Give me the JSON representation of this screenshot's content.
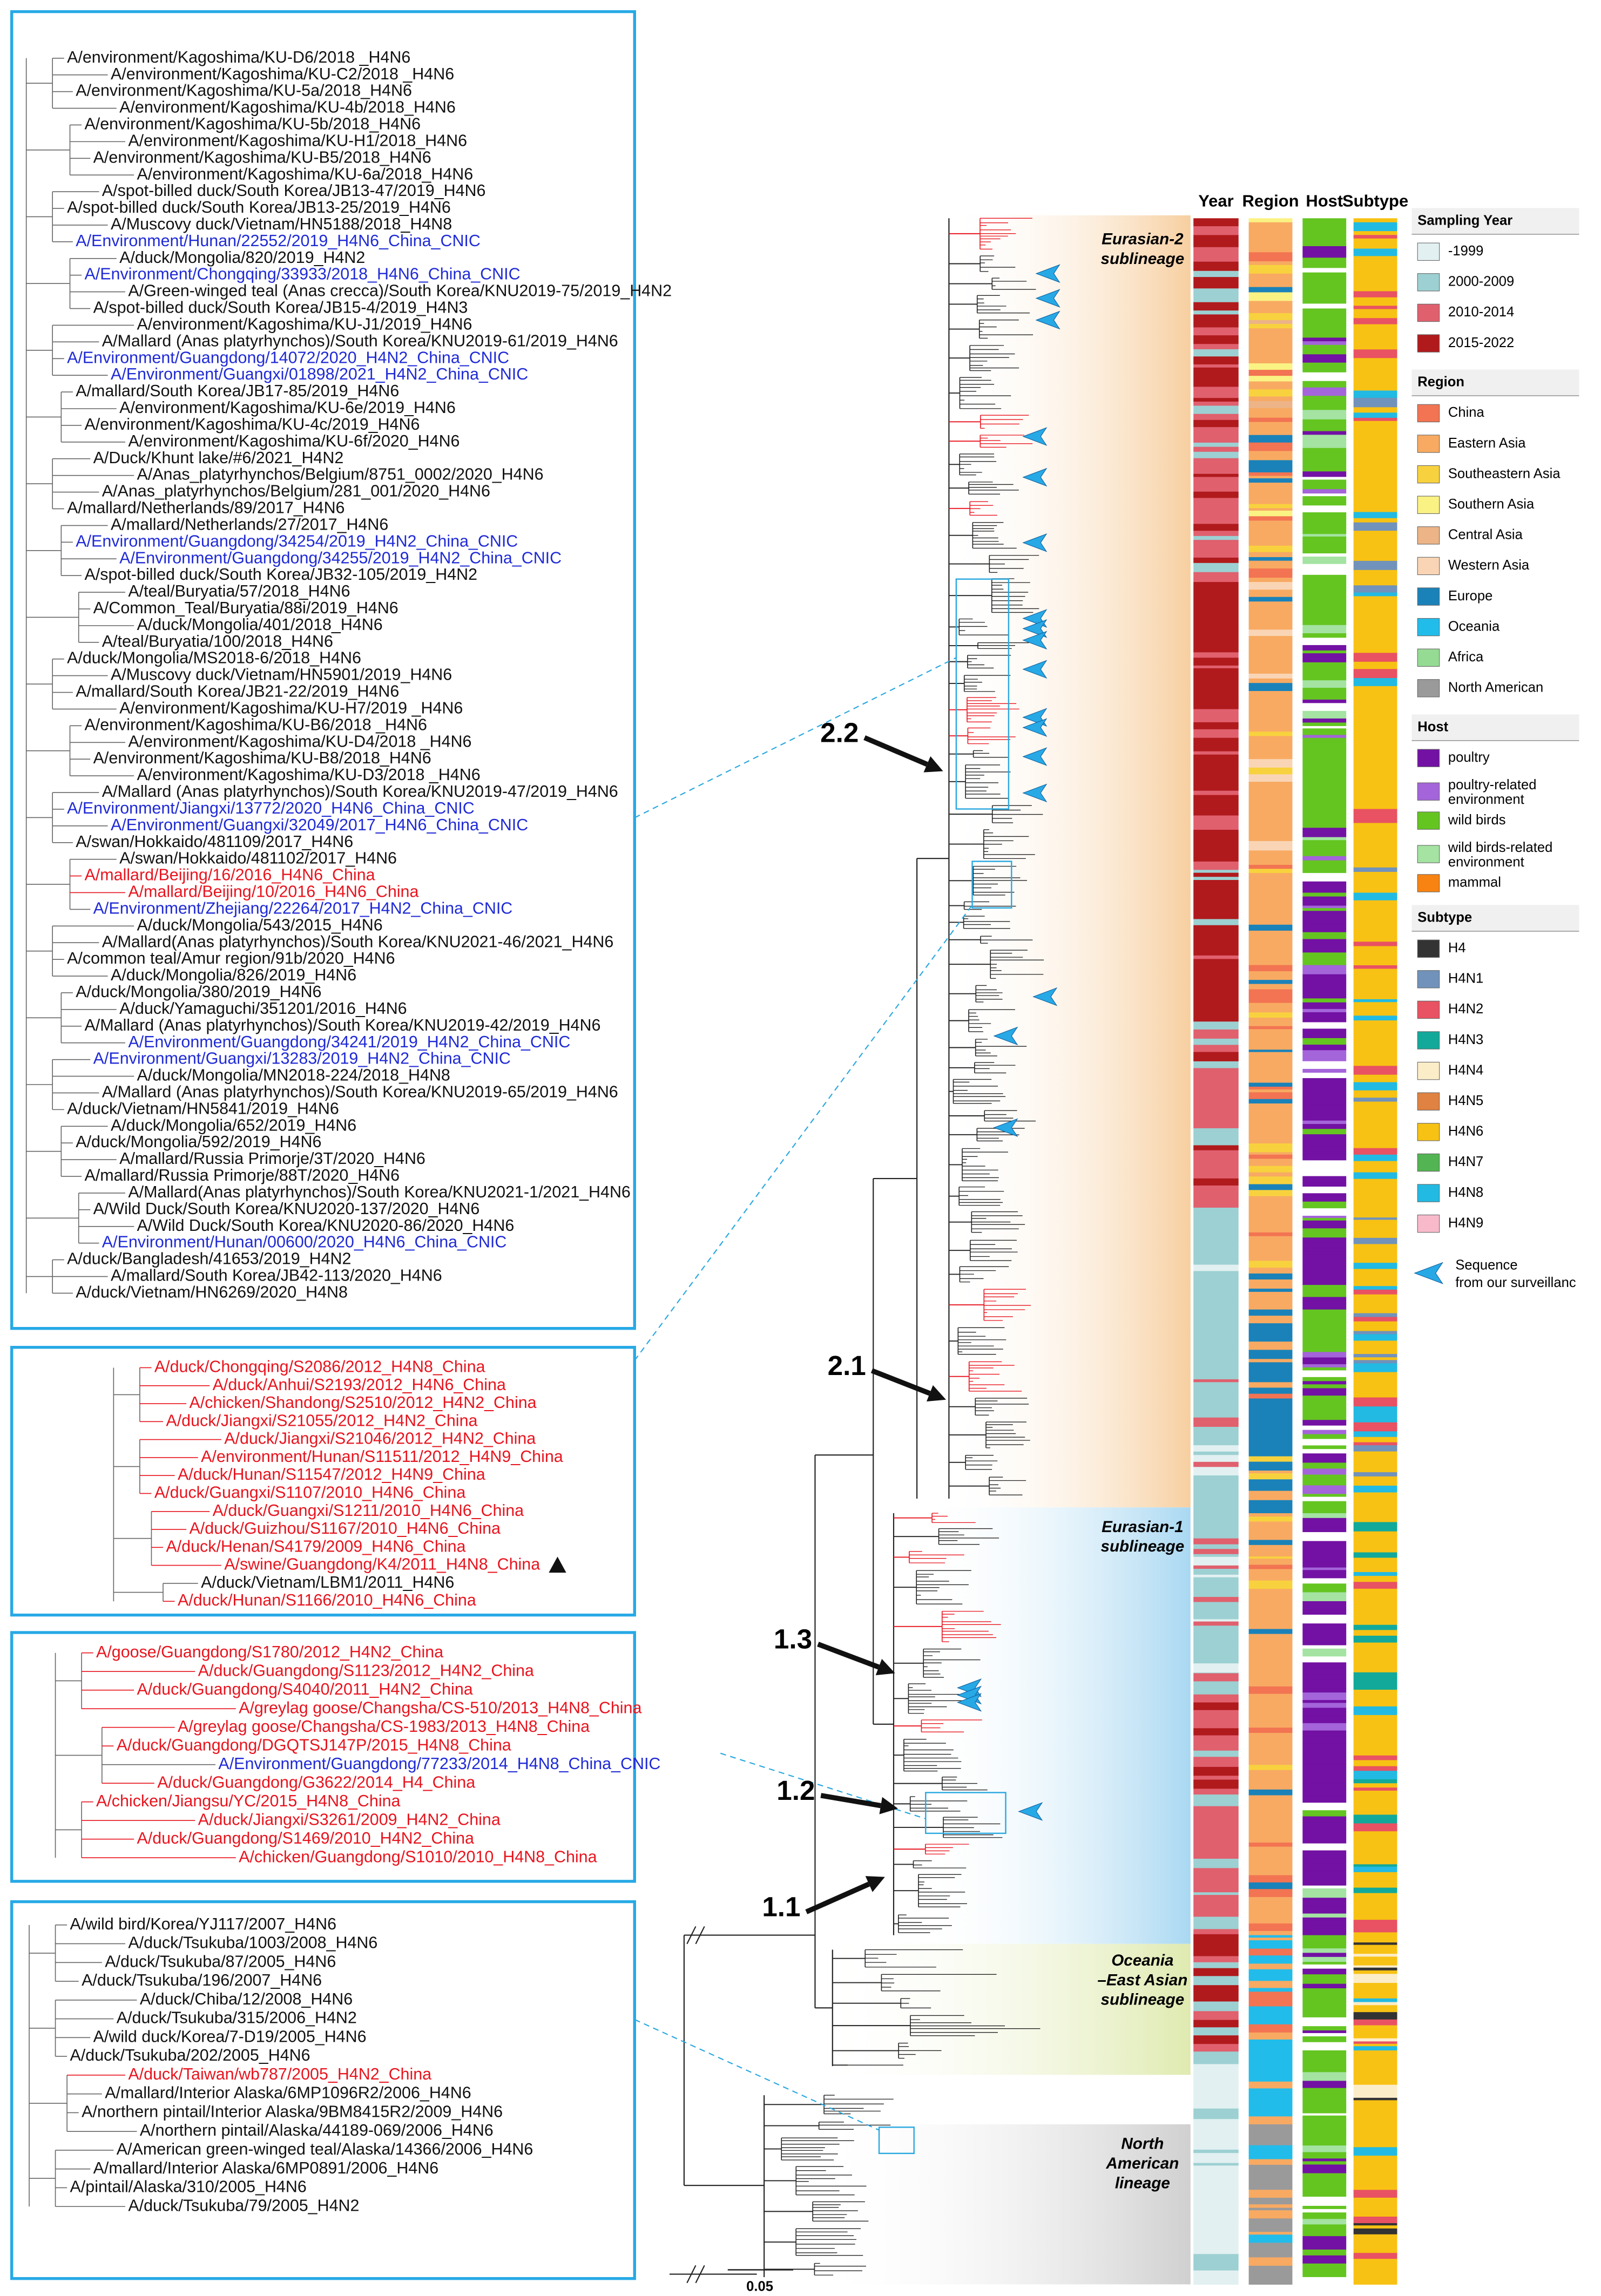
{
  "boxes": [
    {
      "taxa": [
        {
          "name": "A/environment/Kagoshima/KU-D6/2018 _H4N6",
          "color": "#111111"
        },
        {
          "name": "A/environment/Kagoshima/KU-C2/2018 _H4N6",
          "color": "#111111"
        },
        {
          "name": "A/environment/Kagoshima/KU-5a/2018_H4N6",
          "color": "#111111"
        },
        {
          "name": "A/environment/Kagoshima/KU-4b/2018_H4N6",
          "color": "#111111"
        },
        {
          "name": "A/environment/Kagoshima/KU-5b/2018_H4N6",
          "color": "#111111"
        },
        {
          "name": "A/environment/Kagoshima/KU-H1/2018_H4N6",
          "color": "#111111"
        },
        {
          "name": "A/environment/Kagoshima/KU-B5/2018_H4N6",
          "color": "#111111"
        },
        {
          "name": "A/environment/Kagoshima/KU-6a/2018_H4N6",
          "color": "#111111"
        },
        {
          "name": "A/spot-billed duck/South Korea/JB13-47/2019_H4N6",
          "color": "#111111"
        },
        {
          "name": "A/spot-billed duck/South Korea/JB13-25/2019_H4N6",
          "color": "#111111"
        },
        {
          "name": "A/Muscovy duck/Vietnam/HN5188/2018_H4N8",
          "color": "#111111"
        },
        {
          "name": "A/Environment/Hunan/22552/2019_H4N6_China_CNIC",
          "color": "#1f2ad6"
        },
        {
          "name": "A/duck/Mongolia/820/2019_H4N2",
          "color": "#111111"
        },
        {
          "name": "A/Environment/Chongqing/33933/2018_H4N6_China_CNIC",
          "color": "#1f2ad6"
        },
        {
          "name": "A/Green-winged teal (Anas crecca)/South Korea/KNU2019-75/2019_H4N2",
          "color": "#111111"
        },
        {
          "name": "A/spot-billed duck/South Korea/JB15-4/2019_H4N3",
          "color": "#111111"
        },
        {
          "name": "A/environment/Kagoshima/KU-J1/2019_H4N6",
          "color": "#111111"
        },
        {
          "name": "A/Mallard (Anas platyrhynchos)/South Korea/KNU2019-61/2019_H4N6",
          "color": "#111111"
        },
        {
          "name": "A/Environment/Guangdong/14072/2020_H4N2_China_CNIC",
          "color": "#1f2ad6"
        },
        {
          "name": "A/Environment/Guangxi/01898/2021_H4N2_China_CNIC",
          "color": "#1f2ad6"
        },
        {
          "name": "A/mallard/South Korea/JB17-85/2019_H4N6",
          "color": "#111111"
        },
        {
          "name": "A/environment/Kagoshima/KU-6e/2019_H4N6",
          "color": "#111111"
        },
        {
          "name": "A/environment/Kagoshima/KU-4c/2019_H4N6",
          "color": "#111111"
        },
        {
          "name": "A/environment/Kagoshima/KU-6f/2020_H4N6",
          "color": "#111111"
        },
        {
          "name": "A/Duck/Khunt lake/#6/2021_H4N2",
          "color": "#111111"
        },
        {
          "name": "A/Anas_platyrhynchos/Belgium/8751_0002/2020_H4N6",
          "color": "#111111"
        },
        {
          "name": "A/Anas_platyrhynchos/Belgium/281_001/2020_H4N6",
          "color": "#111111"
        },
        {
          "name": "A/mallard/Netherlands/89/2017_H4N6",
          "color": "#111111"
        },
        {
          "name": "A/mallard/Netherlands/27/2017_H4N6",
          "color": "#111111"
        },
        {
          "name": "A/Environment/Guangdong/34254/2019_H4N2_China_CNIC",
          "color": "#1f2ad6"
        },
        {
          "name": "A/Environment/Guangdong/34255/2019_H4N2_China_CNIC",
          "color": "#1f2ad6"
        },
        {
          "name": "A/spot-billed duck/South Korea/JB32-105/2019_H4N2",
          "color": "#111111"
        },
        {
          "name": "A/teal/Buryatia/57/2018_H4N6",
          "color": "#111111"
        },
        {
          "name": "A/Common_Teal/Buryatia/88i/2019_H4N6",
          "color": "#111111"
        },
        {
          "name": "A/duck/Mongolia/401/2018_H4N6",
          "color": "#111111"
        },
        {
          "name": "A/teal/Buryatia/100/2018_H4N6",
          "color": "#111111"
        },
        {
          "name": "A/duck/Mongolia/MS2018-6/2018_H4N6",
          "color": "#111111"
        },
        {
          "name": "A/Muscovy duck/Vietnam/HN5901/2019_H4N6",
          "color": "#111111"
        },
        {
          "name": "A/mallard/South Korea/JB21-22/2019_H4N6",
          "color": "#111111"
        },
        {
          "name": "A/environment/Kagoshima/KU-H7/2019 _H4N6",
          "color": "#111111"
        },
        {
          "name": "A/environment/Kagoshima/KU-B6/2018 _H4N6",
          "color": "#111111"
        },
        {
          "name": "A/environment/Kagoshima/KU-D4/2018 _H4N6",
          "color": "#111111"
        },
        {
          "name": "A/environment/Kagoshima/KU-B8/2018_H4N6",
          "color": "#111111"
        },
        {
          "name": "A/environment/Kagoshima/KU-D3/2018 _H4N6",
          "color": "#111111"
        },
        {
          "name": "A/Mallard (Anas platyrhynchos)/South Korea/KNU2019-47/2019_H4N6",
          "color": "#111111"
        },
        {
          "name": "A/Environment/Jiangxi/13772/2020_H4N6_China_CNIC",
          "color": "#1f2ad6"
        },
        {
          "name": "A/Environment/Guangxi/32049/2017_H4N6_China_CNIC",
          "color": "#1f2ad6"
        },
        {
          "name": "A/swan/Hokkaido/481109/2017_H4N6",
          "color": "#111111"
        },
        {
          "name": "A/swan/Hokkaido/481102/2017_H4N6",
          "color": "#111111"
        },
        {
          "name": "A/mallard/Beijing/16/2016_H4N6_China",
          "color": "#e8141e"
        },
        {
          "name": "A/mallard/Beijing/10/2016_H4N6_China",
          "color": "#e8141e"
        },
        {
          "name": "A/Environment/Zhejiang/22264/2017_H4N2_China_CNIC",
          "color": "#1f2ad6"
        },
        {
          "name": "A/duck/Mongolia/543/2015_H4N6",
          "color": "#111111"
        },
        {
          "name": "A/Mallard(Anas platyrhynchos)/South Korea/KNU2021-46/2021_H4N6",
          "color": "#111111"
        },
        {
          "name": "A/common teal/Amur region/91b/2020_H4N6",
          "color": "#111111"
        },
        {
          "name": "A/duck/Mongolia/826/2019_H4N6",
          "color": "#111111"
        },
        {
          "name": "A/duck/Mongolia/380/2019_H4N6",
          "color": "#111111"
        },
        {
          "name": "A/duck/Yamaguchi/351201/2016_H4N6",
          "color": "#111111"
        },
        {
          "name": "A/Mallard (Anas platyrhynchos)/South Korea/KNU2019-42/2019_H4N6",
          "color": "#111111"
        },
        {
          "name": "A/Environment/Guangdong/34241/2019_H4N2_China_CNIC",
          "color": "#1f2ad6"
        },
        {
          "name": "A/Environment/Guangxi/13283/2019_H4N2_China_CNIC",
          "color": "#1f2ad6"
        },
        {
          "name": "A/duck/Mongolia/MN2018-224/2018_H4N8",
          "color": "#111111"
        },
        {
          "name": "A/Mallard (Anas platyrhynchos)/South Korea/KNU2019-65/2019_H4N6",
          "color": "#111111"
        },
        {
          "name": "A/duck/Vietnam/HN5841/2019_H4N6",
          "color": "#111111"
        },
        {
          "name": "A/duck/Mongolia/652/2019_H4N6",
          "color": "#111111"
        },
        {
          "name": "A/duck/Mongolia/592/2019_H4N6",
          "color": "#111111"
        },
        {
          "name": "A/mallard/Russia Primorje/3T/2020_H4N6",
          "color": "#111111"
        },
        {
          "name": "A/mallard/Russia Primorje/88T/2020_H4N6",
          "color": "#111111"
        },
        {
          "name": "A/Mallard(Anas platyrhynchos)/South Korea/KNU2021-1/2021_H4N6",
          "color": "#111111"
        },
        {
          "name": "A/Wild Duck/South Korea/KNU2020-137/2020_H4N6",
          "color": "#111111"
        },
        {
          "name": "A/Wild Duck/South Korea/KNU2020-86/2020_H4N6",
          "color": "#111111"
        },
        {
          "name": "A/Environment/Hunan/00600/2020_H4N6_China_CNIC",
          "color": "#1f2ad6"
        },
        {
          "name": "A/duck/Bangladesh/41653/2019_H4N2",
          "color": "#111111"
        },
        {
          "name": "A/mallard/South Korea/JB42-113/2020_H4N6",
          "color": "#111111"
        },
        {
          "name": "A/duck/Vietnam/HN6269/2020_H4N8",
          "color": "#111111"
        }
      ]
    },
    {
      "taxa": [
        {
          "name": "A/duck/Chongqing/S2086/2012_H4N8_China",
          "color": "#e8141e"
        },
        {
          "name": "A/duck/Anhui/S2193/2012_H4N6_China",
          "color": "#e8141e"
        },
        {
          "name": "A/chicken/Shandong/S2510/2012_H4N2_China",
          "color": "#e8141e"
        },
        {
          "name": "A/duck/Jiangxi/S21055/2012_H4N2_China",
          "color": "#e8141e"
        },
        {
          "name": "A/duck/Jiangxi/S21046/2012_H4N2_China",
          "color": "#e8141e"
        },
        {
          "name": "A/environment/Hunan/S11511/2012_H4N9_China",
          "color": "#e8141e"
        },
        {
          "name": "A/duck/Hunan/S11547/2012_H4N9_China",
          "color": "#e8141e"
        },
        {
          "name": "A/duck/Guangxi/S1107/2010_H4N6_China",
          "color": "#e8141e"
        },
        {
          "name": "A/duck/Guangxi/S1211/2010_H4N6_China",
          "color": "#e8141e"
        },
        {
          "name": "A/duck/Guizhou/S1167/2010_H4N6_China",
          "color": "#e8141e"
        },
        {
          "name": "A/duck/Henan/S4179/2009_H4N6_China",
          "color": "#e8141e"
        },
        {
          "name": "A/swine/Guangdong/K4/2011_H4N8_China",
          "color": "#e8141e"
        },
        {
          "name": "A/duck/Vietnam/LBM1/2011_H4N6",
          "color": "#111111"
        },
        {
          "name": "A/duck/Hunan/S1166/2010_H4N6_China",
          "color": "#e8141e"
        }
      ]
    },
    {
      "taxa": [
        {
          "name": "A/goose/Guangdong/S1780/2012_H4N2_China",
          "color": "#e8141e"
        },
        {
          "name": "A/duck/Guangdong/S1123/2012_H4N2_China",
          "color": "#e8141e"
        },
        {
          "name": "A/duck/Guangdong/S4040/2011_H4N2_China",
          "color": "#e8141e"
        },
        {
          "name": "A/greylag goose/Changsha/CS-510/2013_H4N8_China",
          "color": "#e8141e"
        },
        {
          "name": "A/greylag goose/Changsha/CS-1983/2013_H4N8_China",
          "color": "#e8141e"
        },
        {
          "name": "A/duck/Guangdong/DGQTSJ147P/2015_H4N8_China",
          "color": "#e8141e"
        },
        {
          "name": "A/Environment/Guangdong/77233/2014_H4N8_China_CNIC",
          "color": "#1f2ad6"
        },
        {
          "name": "A/duck/Guangdong/G3622/2014_H4_China",
          "color": "#e8141e"
        },
        {
          "name": "A/chicken/Jiangsu/YC/2015_H4N8_China",
          "color": "#e8141e"
        },
        {
          "name": "A/duck/Jiangxi/S3261/2009_H4N2_China",
          "color": "#e8141e"
        },
        {
          "name": "A/duck/Guangdong/S1469/2010_H4N2_China",
          "color": "#e8141e"
        },
        {
          "name": "A/chicken/Guangdong/S1010/2010_H4N8_China",
          "color": "#e8141e"
        }
      ]
    },
    {
      "taxa": [
        {
          "name": "A/wild bird/Korea/YJ117/2007_H4N6",
          "color": "#111111"
        },
        {
          "name": "A/duck/Tsukuba/1003/2008_H4N6",
          "color": "#111111"
        },
        {
          "name": "A/duck/Tsukuba/87/2005_H4N6",
          "color": "#111111"
        },
        {
          "name": "A/duck/Tsukuba/196/2007_H4N6",
          "color": "#111111"
        },
        {
          "name": "A/duck/Chiba/12/2008_H4N6",
          "color": "#111111"
        },
        {
          "name": "A/duck/Tsukuba/315/2006_H4N2",
          "color": "#111111"
        },
        {
          "name": "A/wild duck/Korea/7-D19/2005_H4N6",
          "color": "#111111"
        },
        {
          "name": "A/duck/Tsukuba/202/2005_H4N6",
          "color": "#111111"
        },
        {
          "name": "A/duck/Taiwan/wb787/2005_H4N2_China",
          "color": "#e8141e"
        },
        {
          "name": "A/mallard/Interior Alaska/6MP1096R2/2006_H4N6",
          "color": "#111111"
        },
        {
          "name": "A/northern pintail/Interior Alaska/9BM8415R2/2009_H4N6",
          "color": "#111111"
        },
        {
          "name": "A/northern pintail/Alaska/44189-069/2006_H4N6",
          "color": "#111111"
        },
        {
          "name": "A/American green-winged teal/Alaska/14366/2006_H4N6",
          "color": "#111111"
        },
        {
          "name": "A/mallard/Interior Alaska/6MP0891/2006_H4N6",
          "color": "#111111"
        },
        {
          "name": "A/pintail/Alaska/310/2005_H4N6",
          "color": "#111111"
        },
        {
          "name": "A/duck/Tsukuba/79/2005_H4N2",
          "color": "#111111"
        }
      ]
    }
  ],
  "clades": [
    "2.2",
    "2.1",
    "1.3",
    "1.2",
    "1.1"
  ],
  "lineages": [
    {
      "label": [
        "Eurasian-2",
        "sublineage"
      ],
      "color": "#f7cfa0"
    },
    {
      "label": [
        "Eurasian-1",
        "sublineage"
      ],
      "color": "#a9d8f2"
    },
    {
      "label": [
        "Oceania",
        "–East Asian",
        "sublineage"
      ],
      "color": "#dfeab0"
    },
    {
      "label": [
        "North",
        "American",
        "lineage"
      ],
      "color": "#d0d0d0"
    }
  ],
  "columns": [
    "Year",
    "Region",
    "Host",
    "Subtype"
  ],
  "legend": {
    "sections": [
      {
        "title": "Sampling Year",
        "items": [
          {
            "label": [
              "-1999"
            ],
            "color": "#e2f0f1"
          },
          {
            "label": [
              "2000-2009"
            ],
            "color": "#9dd0d2"
          },
          {
            "label": [
              "2010-2014"
            ],
            "color": "#e0606e"
          },
          {
            "label": [
              "2015-2022"
            ],
            "color": "#b01a1c"
          }
        ]
      },
      {
        "title": "Region",
        "items": [
          {
            "label": [
              "China"
            ],
            "color": "#f27452"
          },
          {
            "label": [
              "Eastern Asia"
            ],
            "color": "#f8aa62"
          },
          {
            "label": [
              "Southeastern Asia"
            ],
            "color": "#f8d23e"
          },
          {
            "label": [
              "Southern Asia"
            ],
            "color": "#faf283"
          },
          {
            "label": [
              "Central Asia"
            ],
            "color": "#ecb487"
          },
          {
            "label": [
              "Western Asia"
            ],
            "color": "#f9d5b5"
          },
          {
            "label": [
              "Europe"
            ],
            "color": "#1a82b9"
          },
          {
            "label": [
              "Oceania"
            ],
            "color": "#22bcea"
          },
          {
            "label": [
              "Africa"
            ],
            "color": "#95db94"
          },
          {
            "label": [
              "North American"
            ],
            "color": "#9a9a9a"
          }
        ]
      },
      {
        "title": "Host",
        "items": [
          {
            "label": [
              "poultry"
            ],
            "color": "#7211a3"
          },
          {
            "label": [
              "poultry-related",
              "environment"
            ],
            "color": "#a464da"
          },
          {
            "label": [
              "wild birds"
            ],
            "color": "#64c521"
          },
          {
            "label": [
              "wild birds-related",
              "environment"
            ],
            "color": "#a4e3a2"
          },
          {
            "label": [
              "mammal"
            ],
            "color": "#f88312"
          }
        ]
      },
      {
        "title": "Subtype",
        "items": [
          {
            "label": [
              "H4"
            ],
            "color": "#333333"
          },
          {
            "label": [
              "H4N1"
            ],
            "color": "#7192ba"
          },
          {
            "label": [
              "H4N2"
            ],
            "color": "#e85262"
          },
          {
            "label": [
              "H4N3"
            ],
            "color": "#12a99a"
          },
          {
            "label": [
              "H4N4"
            ],
            "color": "#fcedc9"
          },
          {
            "label": [
              "H4N5"
            ],
            "color": "#e08242"
          },
          {
            "label": [
              "H4N6"
            ],
            "color": "#f8c214"
          },
          {
            "label": [
              "H4N7"
            ],
            "color": "#52b452"
          },
          {
            "label": [
              "H4N8"
            ],
            "color": "#22bae2"
          },
          {
            "label": [
              "H4N9"
            ],
            "color": "#f8bacb"
          }
        ]
      }
    ],
    "surveillance": [
      "Sequence",
      "from our surveillanc"
    ]
  },
  "scale": "0.05"
}
